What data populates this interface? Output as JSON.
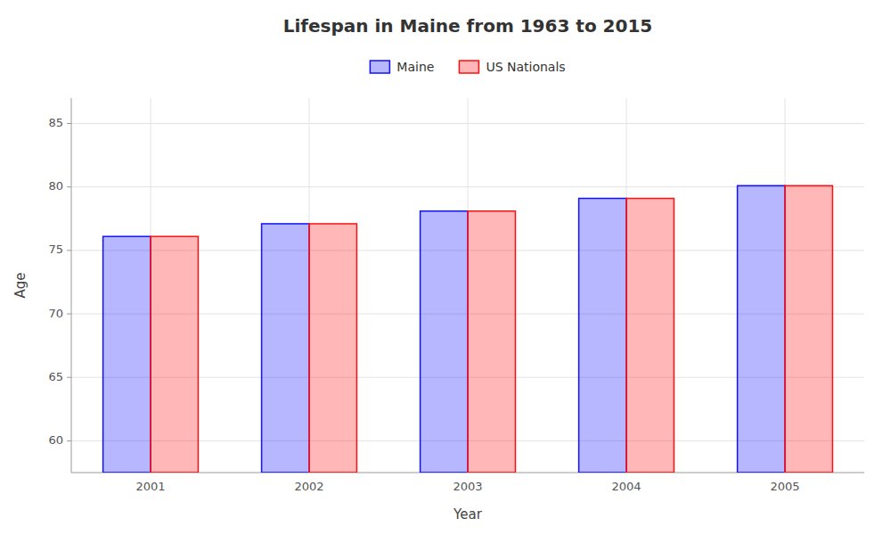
{
  "chart_data": {
    "type": "bar",
    "title": "Lifespan in Maine from 1963 to 2015",
    "x_label": "Year",
    "y_label": "Age",
    "categories": [
      "2001",
      "2002",
      "2003",
      "2004",
      "2005"
    ],
    "series": [
      {
        "name": "Maine",
        "color": "#1111ff",
        "values": [
          76.1,
          77.1,
          78.1,
          79.1,
          80.1
        ]
      },
      {
        "name": "US Nationals",
        "color": "#ff1111",
        "values": [
          76.1,
          77.1,
          78.1,
          79.1,
          80.1
        ]
      }
    ],
    "ylim": [
      57.5,
      87
    ],
    "yticks": [
      60,
      65,
      70,
      75,
      80,
      85
    ],
    "grid": true,
    "legend": "top"
  }
}
